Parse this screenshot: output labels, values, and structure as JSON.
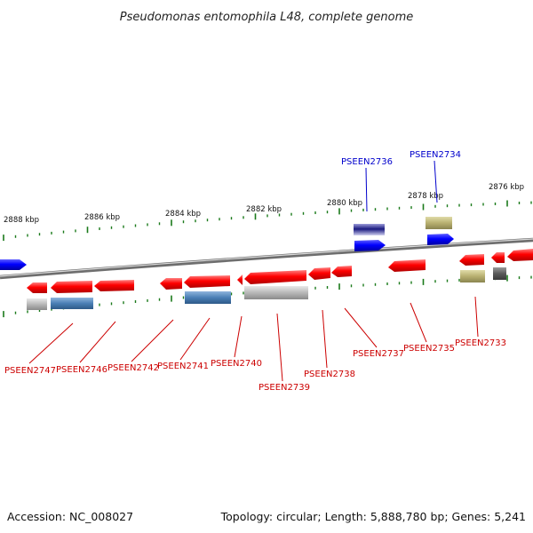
{
  "title": "Pseudomonas entomophila L48, complete genome",
  "footer": {
    "accession": "Accession: NC_008027",
    "topology": "Topology: circular; Length: 5,888,780 bp; Genes: 5,241"
  },
  "kbp_labels": [
    "2888 kbp",
    "2886 kbp",
    "2884 kbp",
    "2882 kbp",
    "2880 kbp",
    "2878 kbp",
    "2876 kbp"
  ],
  "top_genes": [
    {
      "label": "PSEEN2736",
      "color": "#0000cc"
    },
    {
      "label": "PSEEN2734",
      "color": "#0000cc"
    }
  ],
  "bottom_genes": [
    {
      "label": "PSEEN2747",
      "color": "#cc0000"
    },
    {
      "label": "PSEEN2746",
      "color": "#cc0000"
    },
    {
      "label": "PSEEN2742",
      "color": "#cc0000"
    },
    {
      "label": "PSEEN2741",
      "color": "#cc0000"
    },
    {
      "label": "PSEEN2740",
      "color": "#cc0000"
    },
    {
      "label": "PSEEN2739",
      "color": "#cc0000"
    },
    {
      "label": "PSEEN2738",
      "color": "#cc0000"
    },
    {
      "label": "PSEEN2737",
      "color": "#cc0000"
    },
    {
      "label": "PSEEN2735",
      "color": "#cc0000"
    },
    {
      "label": "PSEEN2733",
      "color": "#cc0000"
    }
  ],
  "colors": {
    "forward_gene": "#0000ff",
    "reverse_gene": "#ff0000",
    "backbone": "#888888",
    "tick": "#1a7a1a",
    "feature_grey": "#b0b0b0",
    "feature_steelblue": "#4a7fb5",
    "feature_olive": "#b8b070",
    "feature_navy": "#1a1a80"
  }
}
